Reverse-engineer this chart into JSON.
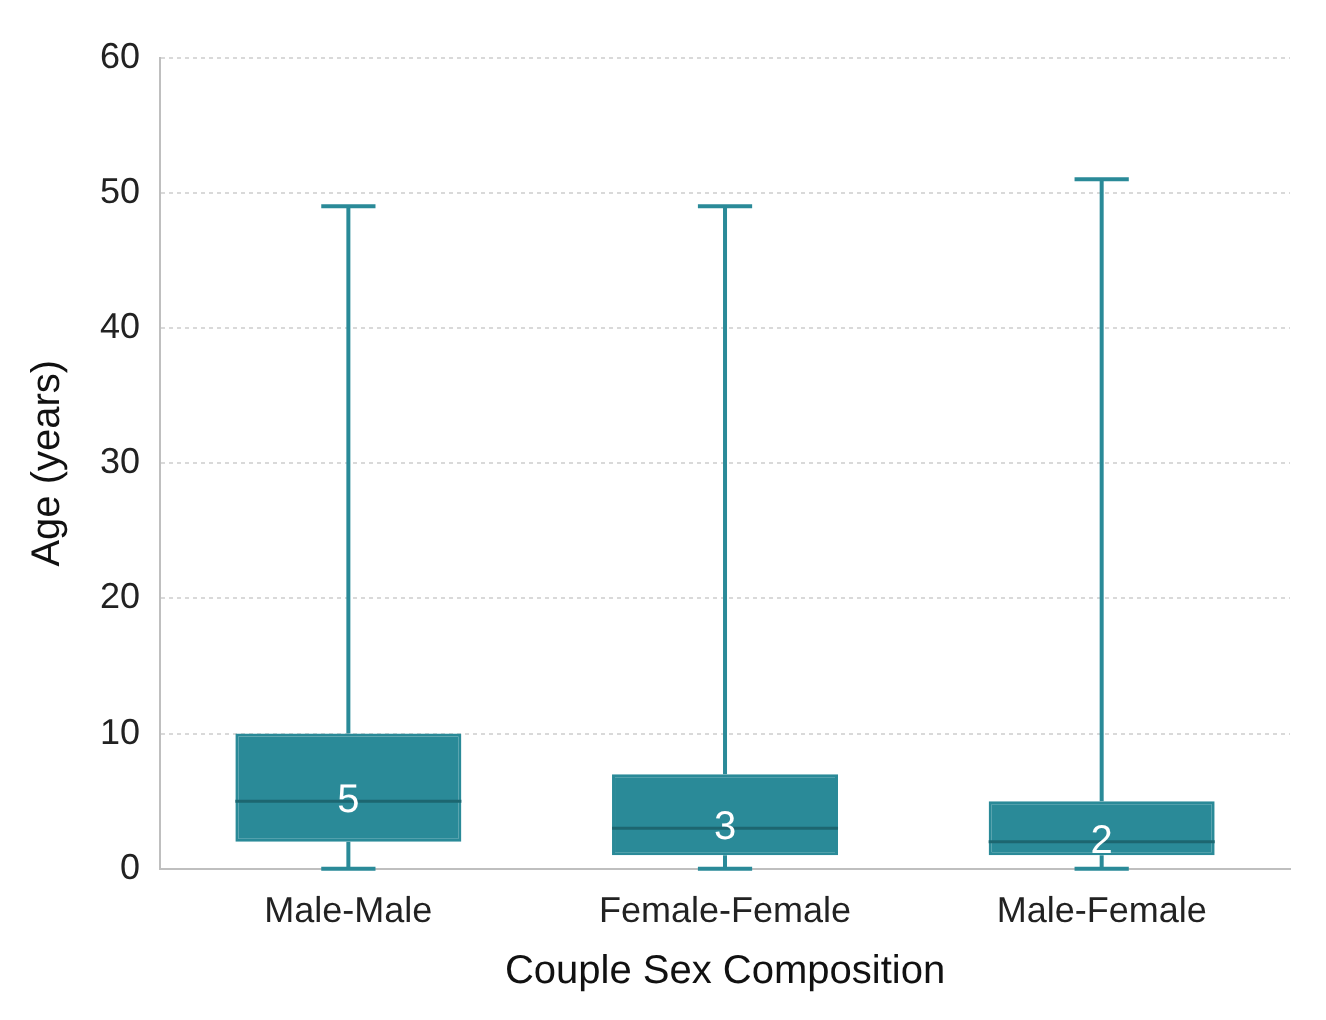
{
  "chart_data": {
    "type": "box",
    "xlabel": "Couple Sex Composition",
    "ylabel": "Age (years)",
    "categories": [
      "Male-Male",
      "Female-Female",
      "Male-Female"
    ],
    "boxes": [
      {
        "low": 0,
        "q1": 2,
        "median": 5,
        "q3": 10,
        "high": 49
      },
      {
        "low": 0,
        "q1": 1,
        "median": 3,
        "q3": 7,
        "high": 49
      },
      {
        "low": 0,
        "q1": 1,
        "median": 2,
        "q3": 5,
        "high": 51
      }
    ],
    "color": "#2a8a98",
    "ylim": [
      0,
      60
    ],
    "yticks": [
      0,
      10,
      20,
      30,
      40,
      50,
      60
    ],
    "grid": "y",
    "annotations": [
      {
        "text": "5",
        "x": "Male-Male",
        "y": 5
      },
      {
        "text": "3",
        "x": "Female-Female",
        "y": 3
      },
      {
        "text": "2",
        "x": "Male-Female",
        "y": 2
      }
    ]
  }
}
